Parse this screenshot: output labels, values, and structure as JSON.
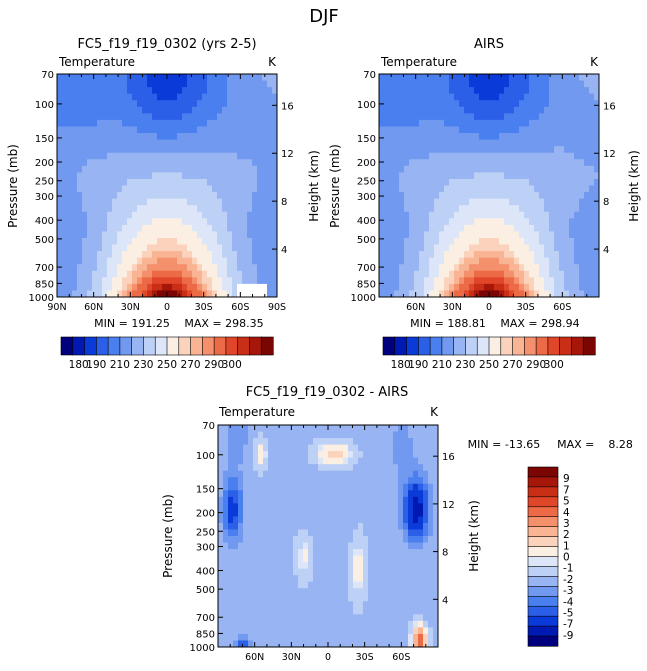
{
  "figure_title": "DJF",
  "colors": {
    "temperature_levels": [
      "#00007f",
      "#0019b2",
      "#0a3ad8",
      "#2c5fe8",
      "#4a7ff0",
      "#7199ef",
      "#98b4f2",
      "#bdd0f6",
      "#dde6f9",
      "#fbeee3",
      "#fbd2bb",
      "#f9b494",
      "#f4906b",
      "#ec6a45",
      "#e0462a",
      "#c92f16",
      "#a6170a",
      "#7a0503"
    ],
    "difference_levels": [
      "#00007f",
      "#0019b2",
      "#0a3ad8",
      "#2c5fe8",
      "#4a7ff0",
      "#7199ef",
      "#98b4f2",
      "#bdd0f6",
      "#dde6f9",
      "#fbeee3",
      "#fbd2bb",
      "#f9b494",
      "#f4906b",
      "#ec6a45",
      "#e0462a",
      "#c92f16",
      "#a6170a",
      "#7a0503"
    ]
  },
  "chart_data": [
    {
      "type": "heatmap",
      "id": "model",
      "title": "FC5_f19_f19_0302 (yrs 2-5)",
      "left_label": "Temperature",
      "right_label": "K",
      "ylabel": "Pressure (mb)",
      "y2label": "Height (km)",
      "x_ticks": [
        "90N",
        "60N",
        "30N",
        "0",
        "30S",
        "60S",
        "90S"
      ],
      "x_values": [
        90,
        60,
        30,
        0,
        -30,
        -60,
        -90
      ],
      "xlim": [
        90,
        -90
      ],
      "y_ticks": [
        "70",
        "100",
        "150",
        "200",
        "250",
        "300",
        "400",
        "500",
        "700",
        "850",
        "1000"
      ],
      "y_values": [
        70,
        100,
        150,
        200,
        250,
        300,
        400,
        500,
        700,
        850,
        1000
      ],
      "ylim": [
        70,
        1000
      ],
      "y2_ticks": [
        "16",
        "12",
        "8",
        "4"
      ],
      "y2_values": [
        16,
        12,
        8,
        4
      ],
      "min_text": "MIN = 191.25",
      "max_text": "MAX = 298.35",
      "min": 191.25,
      "max": 298.35
    },
    {
      "type": "heatmap",
      "id": "obs",
      "title": "AIRS",
      "left_label": "Temperature",
      "right_label": "K",
      "ylabel": "Pressure (mb)",
      "y2label": "Height (km)",
      "x_ticks": [
        "60N",
        "30N",
        "0",
        "30S",
        "60S"
      ],
      "x_values": [
        60,
        30,
        0,
        -30,
        -60
      ],
      "xlim": [
        90,
        -90
      ],
      "y_ticks": [
        "70",
        "100",
        "150",
        "200",
        "250",
        "300",
        "400",
        "500",
        "700",
        "850",
        "1000"
      ],
      "y_values": [
        70,
        100,
        150,
        200,
        250,
        300,
        400,
        500,
        700,
        850,
        1000
      ],
      "ylim": [
        70,
        1000
      ],
      "y2_ticks": [
        "16",
        "12",
        "8",
        "4"
      ],
      "y2_values": [
        16,
        12,
        8,
        4
      ],
      "min_text": "MIN = 188.81",
      "max_text": "MAX = 298.94",
      "min": 188.81,
      "max": 298.94
    },
    {
      "type": "heatmap",
      "id": "diff",
      "title": "FC5_f19_f19_0302 - AIRS",
      "left_label": "Temperature",
      "right_label": "K",
      "ylabel": "Pressure (mb)",
      "y2label": "Height (km)",
      "x_ticks": [
        "60N",
        "30N",
        "0",
        "30S",
        "60S"
      ],
      "x_values": [
        60,
        30,
        0,
        -30,
        -60
      ],
      "xlim": [
        90,
        -90
      ],
      "y_ticks": [
        "70",
        "100",
        "150",
        "200",
        "250",
        "300",
        "400",
        "500",
        "700",
        "850",
        "1000"
      ],
      "y_values": [
        70,
        100,
        150,
        200,
        250,
        300,
        400,
        500,
        700,
        850,
        1000
      ],
      "ylim": [
        70,
        1000
      ],
      "y2_ticks": [
        "16",
        "12",
        "8",
        "4"
      ],
      "y2_values": [
        16,
        12,
        8,
        4
      ],
      "min_text": "MIN = -13.65",
      "max_text": "MAX =    8.28",
      "min": -13.65,
      "max": 8.28
    }
  ],
  "colorbars": {
    "temperature": {
      "orientation": "horizontal",
      "tick_labels": [
        "180",
        "190",
        "210",
        "230",
        "250",
        "270",
        "290",
        "300"
      ],
      "tick_values": [
        180,
        190,
        210,
        230,
        250,
        270,
        290,
        300
      ]
    },
    "difference": {
      "orientation": "vertical",
      "tick_labels": [
        "9",
        "7",
        "5",
        "4",
        "3",
        "2",
        "1",
        "0",
        "-1",
        "-2",
        "-3",
        "-4",
        "-5",
        "-7",
        "-9"
      ],
      "tick_values": [
        9,
        7,
        5,
        4,
        3,
        2,
        1,
        0,
        -1,
        -2,
        -3,
        -4,
        -5,
        -7,
        -9
      ]
    }
  }
}
